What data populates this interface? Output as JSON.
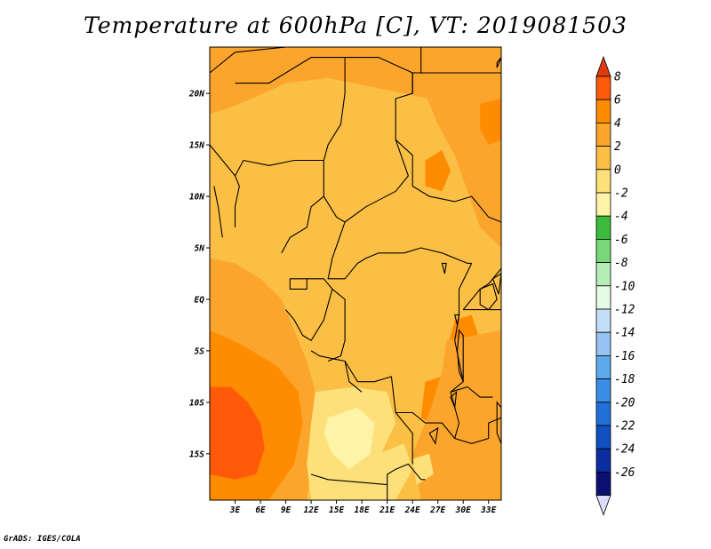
{
  "title": "Temperature at 600hPa [C], VT: 2019081503",
  "credit": "GrADS: IGES/COLA",
  "chart_data": {
    "type": "heatmap",
    "title": "Temperature at 600hPa [C], VT: 2019081503",
    "xlim": [
      0,
      34.5
    ],
    "ylim": [
      -19.5,
      24.5
    ],
    "x_ticks": [
      {
        "value": 3,
        "label": "3E"
      },
      {
        "value": 6,
        "label": "6E"
      },
      {
        "value": 9,
        "label": "9E"
      },
      {
        "value": 12,
        "label": "12E"
      },
      {
        "value": 15,
        "label": "15E"
      },
      {
        "value": 18,
        "label": "18E"
      },
      {
        "value": 21,
        "label": "21E"
      },
      {
        "value": 24,
        "label": "24E"
      },
      {
        "value": 27,
        "label": "27E"
      },
      {
        "value": 30,
        "label": "30E"
      },
      {
        "value": 33,
        "label": "33E"
      }
    ],
    "y_ticks": [
      {
        "value": 20,
        "label": "20N"
      },
      {
        "value": 15,
        "label": "15N"
      },
      {
        "value": 10,
        "label": "10N"
      },
      {
        "value": 5,
        "label": "5N"
      },
      {
        "value": 0,
        "label": "EQ"
      },
      {
        "value": -5,
        "label": "5S"
      },
      {
        "value": -10,
        "label": "10S"
      },
      {
        "value": -15,
        "label": "15S"
      }
    ],
    "colorbar": {
      "levels": [
        "8",
        "6",
        "4",
        "2",
        "0",
        "-2",
        "-4",
        "-6",
        "-8",
        "-10",
        "-12",
        "-14",
        "-16",
        "-18",
        "-20",
        "-22",
        "-24",
        "-26"
      ],
      "colors": [
        "#e03a12",
        "#ff5a0a",
        "#ff8c00",
        "#fba52d",
        "#fbbf45",
        "#fde07a",
        "#fff3a8",
        "#3cbb3c",
        "#78d878",
        "#b4eeb4",
        "#e6fae6",
        "#c4ddf8",
        "#96c4f2",
        "#5ea8ec",
        "#3a8ee6",
        "#2070d8",
        "#1050c0",
        "#0a2ea0",
        "#0a1070"
      ],
      "over_color": "#e03a12",
      "under_color": "#dcdcf8"
    },
    "field_regions": [
      {
        "name": "background",
        "value": 2.5,
        "color": "#fbbf45"
      },
      {
        "name": "north-band",
        "value": 3,
        "color": "#fba52d"
      },
      {
        "name": "east-africa",
        "value": 3,
        "color": "#fba52d"
      },
      {
        "name": "southwest-ocean",
        "value": 3.5,
        "color": "#fba52d"
      },
      {
        "name": "angola-ocean-warm",
        "value": 5,
        "color": "#ff8c00"
      },
      {
        "name": "ocean-hot-core",
        "value": 5.5,
        "color": "#ff5a0a"
      },
      {
        "name": "sudan-hot-spot",
        "value": 5,
        "color": "#ff8c00"
      },
      {
        "name": "ethiopia-hot-spot",
        "value": 5,
        "color": "#ff8c00"
      },
      {
        "name": "east-lakes-warm",
        "value": 5,
        "color": "#ff8c00"
      },
      {
        "name": "tanzania-warm",
        "value": 3.5,
        "color": "#fba52d"
      },
      {
        "name": "angola-cool",
        "value": 0,
        "color": "#fde07a"
      },
      {
        "name": "angola-cool-core",
        "value": -1,
        "color": "#fff3a8"
      },
      {
        "name": "zambia-cool",
        "value": 0.5,
        "color": "#fde07a"
      }
    ]
  }
}
